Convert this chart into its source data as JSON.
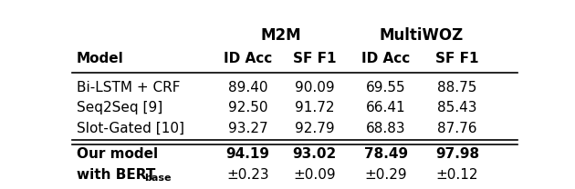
{
  "title_m2m": "M2M",
  "title_multiwoz": "MultiWOZ",
  "col_headers": [
    "Model",
    "ID Acc",
    "SF F1",
    "ID Acc",
    "SF F1"
  ],
  "rows": [
    {
      "model": "Bi-LSTM + CRF",
      "m2m_id": "89.40",
      "m2m_sf": "90.09",
      "mwoz_id": "69.55",
      "mwoz_sf": "88.75"
    },
    {
      "model": "Seq2Seq [9]",
      "m2m_id": "92.50",
      "m2m_sf": "91.72",
      "mwoz_id": "66.41",
      "mwoz_sf": "85.43"
    },
    {
      "model": "Slot-Gated [10]",
      "m2m_id": "93.27",
      "m2m_sf": "92.79",
      "mwoz_id": "68.83",
      "mwoz_sf": "87.76"
    }
  ],
  "our_model_line1": "Our model",
  "our_model_line2": "with BERT",
  "our_model_sub": "base",
  "our_values_line1": [
    "94.19",
    "93.02",
    "78.49",
    "97.98"
  ],
  "our_values_line2": [
    "±0.23",
    "±0.09",
    "±0.29",
    "±0.12"
  ],
  "bg_color": "#ffffff",
  "text_color": "#000000",
  "font_size": 11
}
